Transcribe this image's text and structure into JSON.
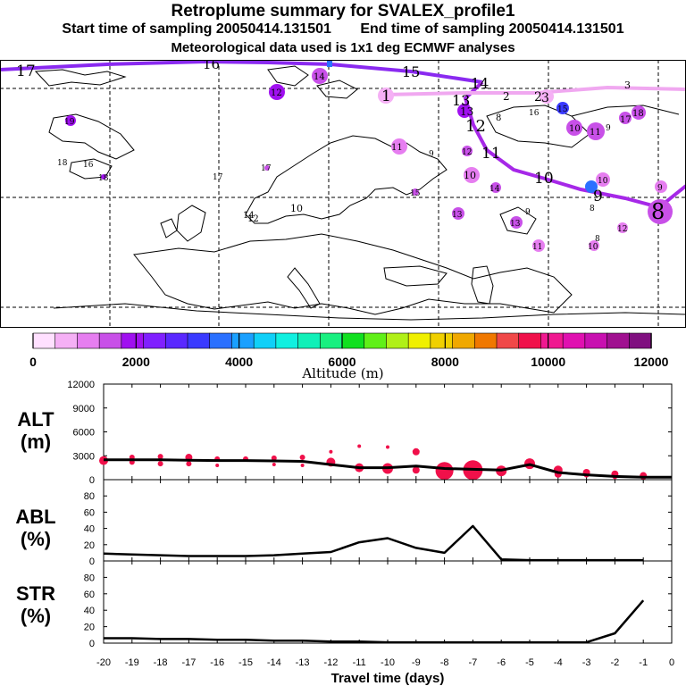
{
  "header": {
    "title": "Retroplume summary for SVALEX_profile1",
    "start_time": "Start time of sampling 20050414.131501",
    "end_time": "End time of sampling 20050414.131501",
    "met_data": "Meteorological data used is 1x1 deg ECMWF analyses"
  },
  "colors": {
    "palette": [
      "#ffe0ff",
      "#f5b0f5",
      "#e67ef0",
      "#c850e8",
      "#a010f0",
      "#8020ff",
      "#5a28ff",
      "#3a3aff",
      "#2a70ff",
      "#1aa0ff",
      "#10d0f8",
      "#10f0e0",
      "#10f0b8",
      "#18f080",
      "#10e020",
      "#60f018",
      "#b0f018",
      "#f0f000",
      "#f0d000",
      "#f0a800",
      "#f07800",
      "#f04848",
      "#f0104a",
      "#f01890",
      "#e010b0",
      "#c810b0",
      "#a01090",
      "#801080"
    ]
  },
  "colorbar": {
    "ticks": [
      "0",
      "2000",
      "4000",
      "6000",
      "8000",
      "10000",
      "12000"
    ],
    "label": "Altitude (m)"
  },
  "map": {
    "trajectory_labels": [
      "17",
      "16",
      "15",
      "14",
      "13",
      "12",
      "11",
      "10",
      "9",
      "8",
      "1",
      "2",
      "3"
    ],
    "cluster_labels": [
      "14",
      "12",
      "1",
      "13",
      "2",
      "3",
      "16",
      "15",
      "13",
      "17",
      "18",
      "10",
      "11",
      "9",
      "12",
      "10",
      "8",
      "9",
      "19",
      "18",
      "17",
      "16",
      "15",
      "18",
      "17",
      "10",
      "12",
      "14",
      "11",
      "13",
      "10",
      "12",
      "9",
      "8",
      "11",
      "10",
      "8",
      "9",
      "13",
      "14"
    ]
  },
  "chart_data": [
    {
      "type": "line",
      "name": "ALT",
      "ylabel": "ALT\n(m)",
      "label_line1": "ALT",
      "label_line2": "(m)",
      "ylim": [
        0,
        12000
      ],
      "yticks": [
        "12000",
        "9000",
        "6000",
        "3000",
        "0"
      ],
      "x": [
        -20,
        -19,
        -18,
        -17,
        -16,
        -15,
        -14,
        -13,
        -12,
        -11,
        -10,
        -9,
        -8,
        -7,
        -6,
        -5,
        -4,
        -3,
        -2,
        -1,
        0
      ],
      "values": [
        2500,
        2500,
        2500,
        2450,
        2400,
        2400,
        2350,
        2300,
        1900,
        1500,
        1500,
        1700,
        1400,
        1300,
        1200,
        1900,
        900,
        600,
        400,
        300,
        300
      ],
      "cluster_points": [
        {
          "x": -20,
          "y": 2400,
          "s": 5
        },
        {
          "x": -19,
          "y": 2800,
          "s": 3
        },
        {
          "x": -19,
          "y": 2200,
          "s": 3
        },
        {
          "x": -18,
          "y": 2900,
          "s": 3
        },
        {
          "x": -18,
          "y": 2000,
          "s": 3
        },
        {
          "x": -17,
          "y": 2800,
          "s": 4
        },
        {
          "x": -17,
          "y": 2000,
          "s": 3
        },
        {
          "x": -16,
          "y": 2600,
          "s": 3
        },
        {
          "x": -16,
          "y": 1800,
          "s": 2
        },
        {
          "x": -15,
          "y": 2600,
          "s": 3
        },
        {
          "x": -14,
          "y": 2700,
          "s": 3
        },
        {
          "x": -14,
          "y": 1900,
          "s": 2
        },
        {
          "x": -13,
          "y": 2800,
          "s": 3
        },
        {
          "x": -13,
          "y": 1800,
          "s": 2
        },
        {
          "x": -12,
          "y": 3500,
          "s": 2
        },
        {
          "x": -12,
          "y": 2200,
          "s": 5
        },
        {
          "x": -11,
          "y": 4200,
          "s": 2
        },
        {
          "x": -11,
          "y": 1500,
          "s": 5
        },
        {
          "x": -10,
          "y": 4100,
          "s": 2
        },
        {
          "x": -10,
          "y": 1400,
          "s": 6
        },
        {
          "x": -9,
          "y": 3500,
          "s": 4
        },
        {
          "x": -9,
          "y": 1200,
          "s": 4
        },
        {
          "x": -8,
          "y": 1100,
          "s": 10
        },
        {
          "x": -7,
          "y": 1200,
          "s": 11
        },
        {
          "x": -6,
          "y": 1100,
          "s": 6
        },
        {
          "x": -5,
          "y": 2000,
          "s": 6
        },
        {
          "x": -4,
          "y": 1200,
          "s": 5
        },
        {
          "x": -4,
          "y": 700,
          "s": 4
        },
        {
          "x": -3,
          "y": 900,
          "s": 4
        },
        {
          "x": -3,
          "y": 600,
          "s": 3
        },
        {
          "x": -2,
          "y": 700,
          "s": 4
        },
        {
          "x": -2,
          "y": 400,
          "s": 3
        },
        {
          "x": -1,
          "y": 500,
          "s": 4
        },
        {
          "x": -1,
          "y": 300,
          "s": 3
        }
      ]
    },
    {
      "type": "line",
      "name": "ABL",
      "ylabel": "ABL\n(%)",
      "label_line1": "ABL",
      "label_line2": "(%)",
      "ylim": [
        0,
        100
      ],
      "yticks": [
        "80",
        "60",
        "40",
        "20",
        "0"
      ],
      "x": [
        -20,
        -19,
        -18,
        -17,
        -16,
        -15,
        -14,
        -13,
        -12,
        -11,
        -10,
        -9,
        -8,
        -7,
        -6,
        -5,
        -4,
        -3,
        -2,
        -1
      ],
      "values": [
        9,
        8,
        7,
        6,
        6,
        6,
        7,
        9,
        11,
        23,
        28,
        16,
        10,
        43,
        2,
        1,
        1,
        1,
        1,
        1
      ]
    },
    {
      "type": "line",
      "name": "STR",
      "ylabel": "STR\n(%)",
      "label_line1": "STR",
      "label_line2": "(%)",
      "ylim": [
        0,
        100
      ],
      "yticks": [
        "80",
        "60",
        "40",
        "20",
        "0"
      ],
      "x": [
        -20,
        -19,
        -18,
        -17,
        -16,
        -15,
        -14,
        -13,
        -12,
        -11,
        -10,
        -9,
        -8,
        -7,
        -6,
        -5,
        -4,
        -3,
        -2,
        -1
      ],
      "values": [
        6,
        6,
        5,
        5,
        4,
        4,
        3,
        3,
        2,
        2,
        1,
        1,
        1,
        1,
        1,
        1,
        1,
        1,
        12,
        52
      ]
    }
  ],
  "xaxis": {
    "ticks": [
      "-20",
      "-19",
      "-18",
      "-17",
      "-16",
      "-15",
      "-14",
      "-13",
      "-12",
      "-11",
      "-10",
      "-9",
      "-8",
      "-7",
      "-6",
      "-5",
      "-4",
      "-3",
      "-2",
      "-1",
      "0"
    ],
    "label": "Travel time (days)"
  }
}
